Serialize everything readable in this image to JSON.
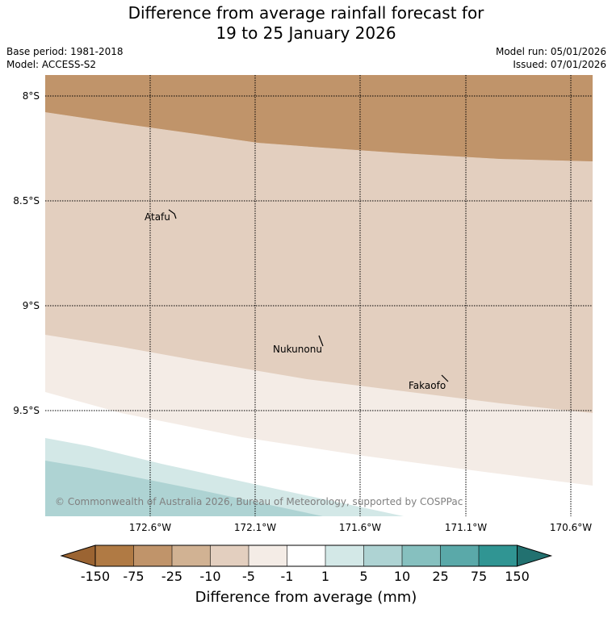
{
  "title_line1": "Difference from average rainfall forecast for",
  "title_line2": "19 to 25 January 2026",
  "base_period": "Base period: 1981-2018",
  "model": "Model: ACCESS-S2",
  "model_run": "Model run: 05/01/2026",
  "issued": "Issued: 07/01/2026",
  "lat_labels": [
    "8°S",
    "8.5°S",
    "9°S",
    "9.5°S"
  ],
  "lon_labels": [
    "172.6°W",
    "172.1°W",
    "171.6°W",
    "171.1°W",
    "170.6°W"
  ],
  "places": [
    {
      "name": "Atafu"
    },
    {
      "name": "Nukunonu"
    },
    {
      "name": "Fakaofo"
    }
  ],
  "copyright": "© Commonwealth of Australia 2026, Bureau of Meteorology, supported by COSPPac",
  "colorbar": {
    "labels": [
      "-150",
      "-75",
      "-25",
      "-10",
      "-5",
      "-1",
      "1",
      "5",
      "10",
      "25",
      "75",
      "150"
    ],
    "colors": [
      "#9b6432",
      "#b07a44",
      "#c0946a",
      "#d1b293",
      "#e3cfbf",
      "#f4ece6",
      "#ffffff",
      "#d3e8e7",
      "#aed3d3",
      "#86c0bf",
      "#5aa9a9",
      "#309593",
      "#227170"
    ],
    "title": "Difference from average (mm)"
  },
  "legend_colors": {
    "band_-75_-25": "#c0946a",
    "band_-25_-10": "#d1b293",
    "band_-10_-5": "#e3cfbf",
    "band_-5_-1": "#f4ece6",
    "band_-1_1": "#ffffff",
    "band_1_5": "#d3e8e7",
    "band_5_10": "#aed3d3"
  }
}
